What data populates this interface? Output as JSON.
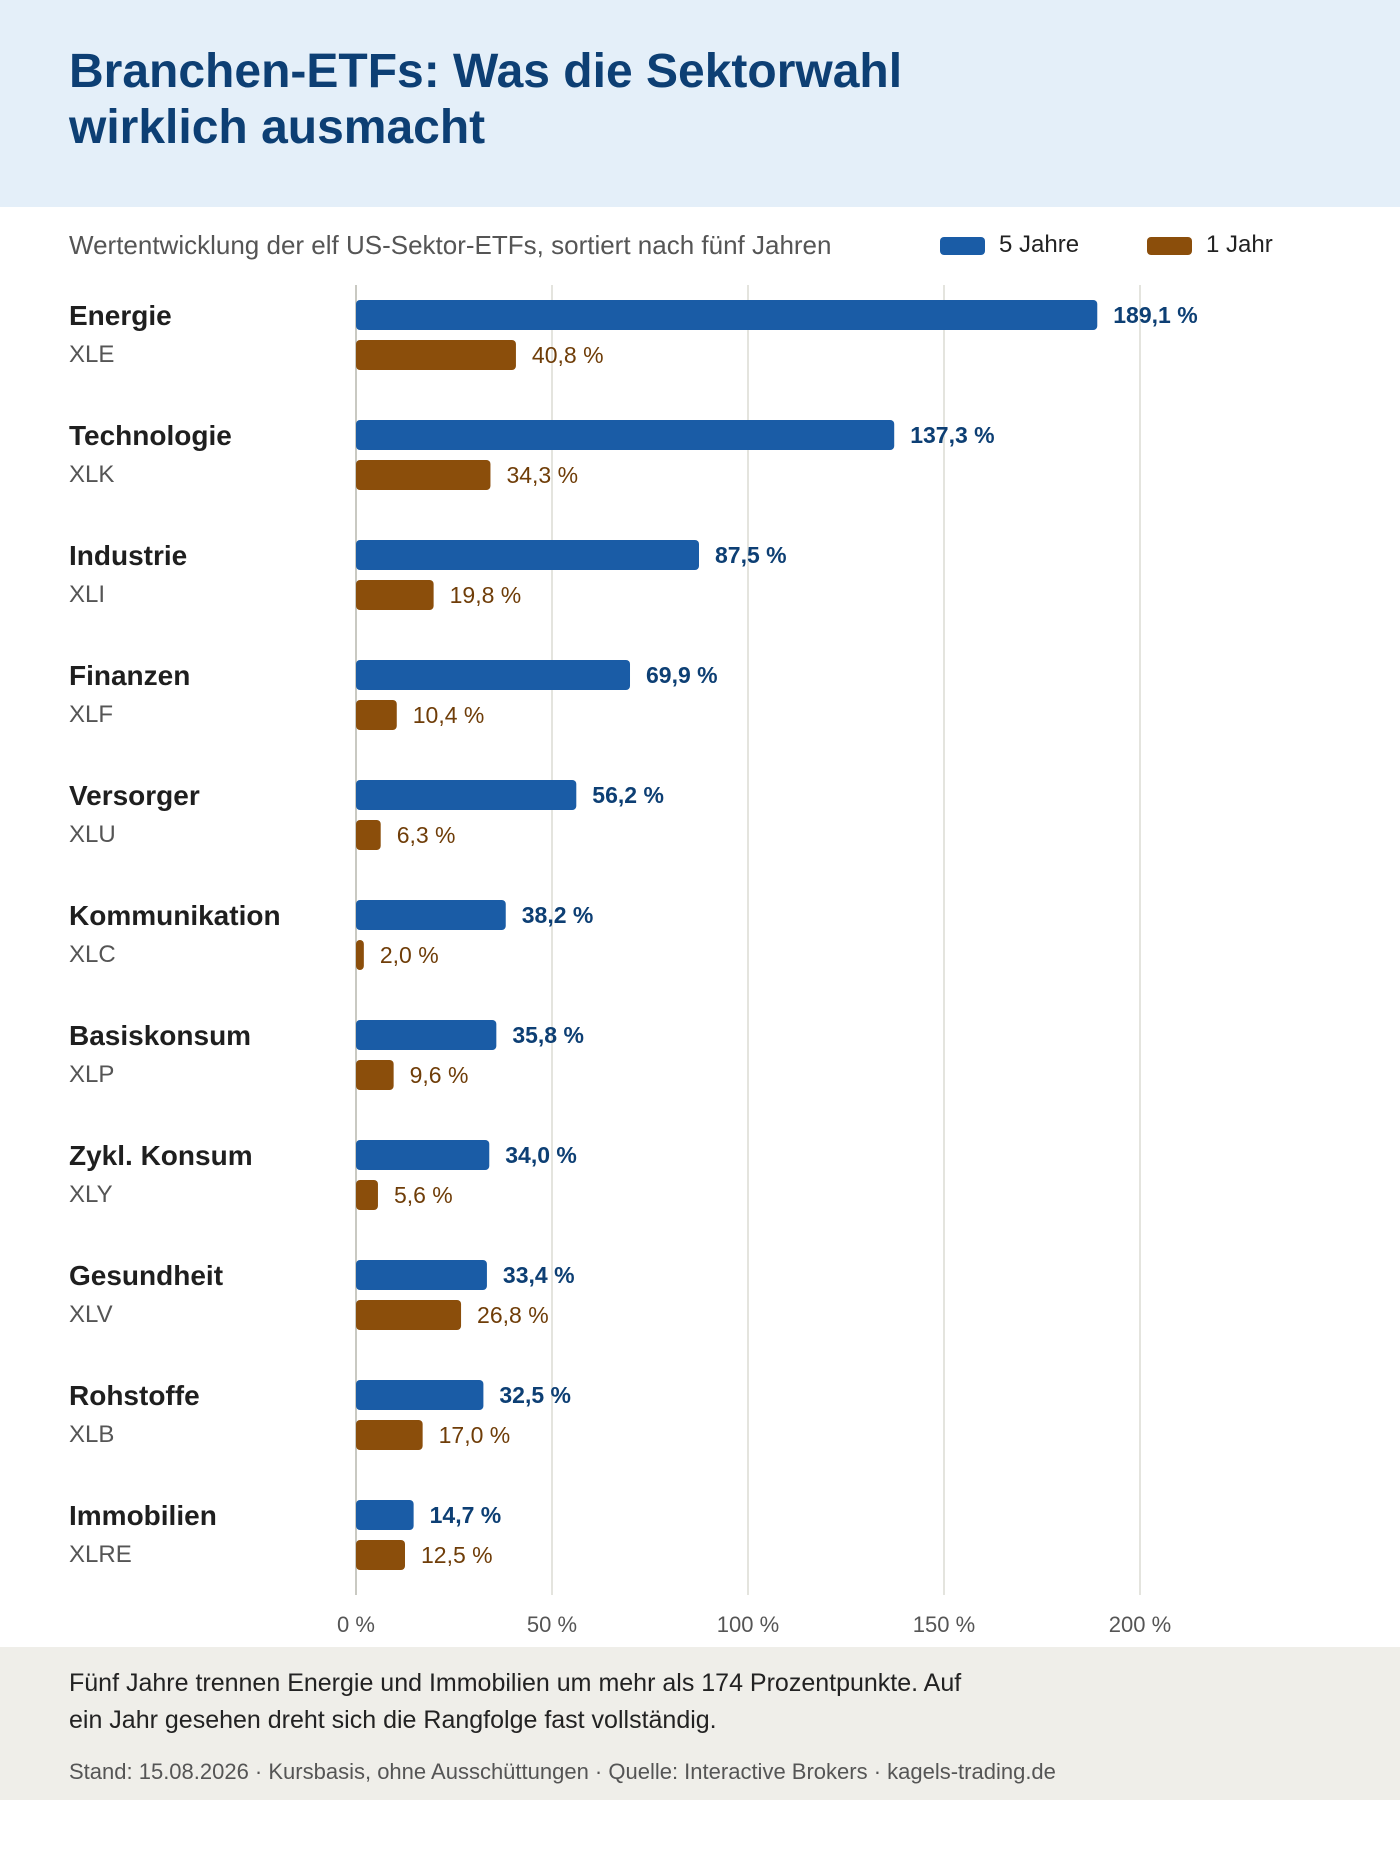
{
  "header": {
    "title_line1": "Branchen-ETFs: Was die Sektorwahl",
    "title_line2": "wirklich ausmacht"
  },
  "colors": {
    "five_year": "#1a5ca6",
    "five_year_label": "#0d3f74",
    "one_year": "#8b4e0b",
    "one_year_label": "#6f3d08",
    "header_bg": "#e4eff9",
    "footer_bg": "#efeee9"
  },
  "chart_data": {
    "type": "bar",
    "orientation": "horizontal",
    "subtitle": "Wertentwicklung der elf US-Sektor-ETFs, sortiert nach fünf Jahren",
    "legend": [
      "5 Jahre",
      "1 Jahr"
    ],
    "legend_placement": "top-right",
    "categories": [
      "Energie",
      "Technologie",
      "Industrie",
      "Finanzen",
      "Versorger",
      "Kommunikation",
      "Basiskonsum",
      "Zykl. Konsum",
      "Gesundheit",
      "Rohstoffe",
      "Immobilien"
    ],
    "tickers": [
      "XLE",
      "XLK",
      "XLI",
      "XLF",
      "XLU",
      "XLC",
      "XLP",
      "XLY",
      "XLV",
      "XLB",
      "XLRE"
    ],
    "series": [
      {
        "name": "5 Jahre",
        "values": [
          189.1,
          137.3,
          87.5,
          69.9,
          56.2,
          38.2,
          35.8,
          34.0,
          33.4,
          32.5,
          14.7
        ],
        "labels": [
          "189,1 %",
          "137,3 %",
          "87,5 %",
          "69,9 %",
          "56,2 %",
          "38,2 %",
          "35,8 %",
          "34,0 %",
          "33,4 %",
          "32,5 %",
          "14,7 %"
        ]
      },
      {
        "name": "1 Jahr",
        "values": [
          40.8,
          34.3,
          19.8,
          10.4,
          6.3,
          2.0,
          9.6,
          5.6,
          26.8,
          17.0,
          12.5
        ],
        "labels": [
          "40,8 %",
          "34,3 %",
          "19,8 %",
          "10,4 %",
          "6,3 %",
          "2,0 %",
          "9,6 %",
          "5,6 %",
          "26,8 %",
          "17,0 %",
          "12,5 %"
        ]
      }
    ],
    "xlim": [
      0,
      200
    ],
    "xticks": [
      0,
      50,
      100,
      150,
      200
    ],
    "xtick_labels": [
      "0 %",
      "50 %",
      "100 %",
      "150 %",
      "200 %"
    ],
    "grid": true
  },
  "footer": {
    "takeaway_line1": "Fünf Jahre trennen Energie und Immobilien um mehr als 174 Prozentpunkte. Auf",
    "takeaway_line2": "ein Jahr gesehen dreht sich die Rangfolge fast vollständig.",
    "stand": "Stand: 15.08.2026 · Kursbasis, ohne Ausschüttungen · Quelle: Interactive Brokers · kagels-trading.de"
  }
}
